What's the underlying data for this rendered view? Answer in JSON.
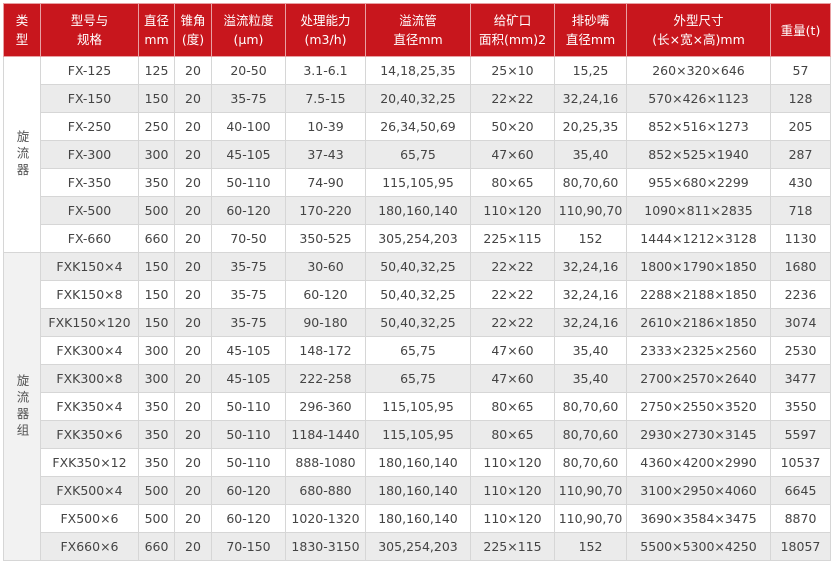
{
  "header": [
    [
      "类",
      "型"
    ],
    [
      "型号与",
      "规格"
    ],
    [
      "直径",
      "mm"
    ],
    [
      "锥角",
      "(度)"
    ],
    [
      "溢流粒度",
      "(μm)"
    ],
    [
      "处理能力",
      "(m3/h)"
    ],
    [
      "溢流管",
      "直径mm"
    ],
    [
      "给矿口",
      "面积(mm)2"
    ],
    [
      "排砂嘴",
      "直径mm"
    ],
    [
      "外型尺寸",
      "(长×宽×高)mm"
    ],
    [
      "重量(t)"
    ]
  ],
  "groups": [
    {
      "type": "旋流器",
      "rows": [
        [
          "FX-125",
          "125",
          "20",
          "20-50",
          "3.1-6.1",
          "14,18,25,35",
          "25×10",
          "15,25",
          "260×320×646",
          "57"
        ],
        [
          "FX-150",
          "150",
          "20",
          "35-75",
          "7.5-15",
          "20,40,32,25",
          "22×22",
          "32,24,16",
          "570×426×1123",
          "128"
        ],
        [
          "FX-250",
          "250",
          "20",
          "40-100",
          "10-39",
          "26,34,50,69",
          "50×20",
          "20,25,35",
          "852×516×1273",
          "205"
        ],
        [
          "FX-300",
          "300",
          "20",
          "45-105",
          "37-43",
          "65,75",
          "47×60",
          "35,40",
          "852×525×1940",
          "287"
        ],
        [
          "FX-350",
          "350",
          "20",
          "50-110",
          "74-90",
          "115,105,95",
          "80×65",
          "80,70,60",
          "955×680×2299",
          "430"
        ],
        [
          "FX-500",
          "500",
          "20",
          "60-120",
          "170-220",
          "180,160,140",
          "110×120",
          "110,90,70",
          "1090×811×2835",
          "718"
        ],
        [
          "FX-660",
          "660",
          "20",
          "70-50",
          "350-525",
          "305,254,203",
          "225×115",
          "152",
          "1444×1212×3128",
          "1130"
        ]
      ]
    },
    {
      "type": "旋流器组",
      "rows": [
        [
          "FXK150×4",
          "150",
          "20",
          "35-75",
          "30-60",
          "50,40,32,25",
          "22×22",
          "32,24,16",
          "1800×1790×1850",
          "1680"
        ],
        [
          "FXK150×8",
          "150",
          "20",
          "35-75",
          "60-120",
          "50,40,32,25",
          "22×22",
          "32,24,16",
          "2288×2188×1850",
          "2236"
        ],
        [
          "FXK150×120",
          "150",
          "20",
          "35-75",
          "90-180",
          "50,40,32,25",
          "22×22",
          "32,24,16",
          "2610×2186×1850",
          "3074"
        ],
        [
          "FXK300×4",
          "300",
          "20",
          "45-105",
          "148-172",
          "65,75",
          "47×60",
          "35,40",
          "2333×2325×2560",
          "2530"
        ],
        [
          "FXK300×8",
          "300",
          "20",
          "45-105",
          "222-258",
          "65,75",
          "47×60",
          "35,40",
          "2700×2570×2640",
          "3477"
        ],
        [
          "FXK350×4",
          "350",
          "20",
          "50-110",
          "296-360",
          "115,105,95",
          "80×65",
          "80,70,60",
          "2750×2550×3520",
          "3550"
        ],
        [
          "FXK350×6",
          "350",
          "20",
          "50-110",
          "1184-1440",
          "115,105,95",
          "80×65",
          "80,70,60",
          "2930×2730×3145",
          "5597"
        ],
        [
          "FXK350×12",
          "350",
          "20",
          "50-110",
          "888-1080",
          "180,160,140",
          "110×120",
          "80,70,60",
          "4360×4200×2990",
          "10537"
        ],
        [
          "FXK500×4",
          "500",
          "20",
          "60-120",
          "680-880",
          "180,160,140",
          "110×120",
          "110,90,70",
          "3100×2950×4060",
          "6645"
        ],
        [
          "FX500×6",
          "500",
          "20",
          "60-120",
          "1020-1320",
          "180,160,140",
          "110×120",
          "110,90,70",
          "3690×3584×3475",
          "8870"
        ],
        [
          "FX660×6",
          "660",
          "20",
          "70-150",
          "1830-3150",
          "305,254,203",
          "225×115",
          "152",
          "5500×5300×4250",
          "18057"
        ]
      ]
    }
  ]
}
